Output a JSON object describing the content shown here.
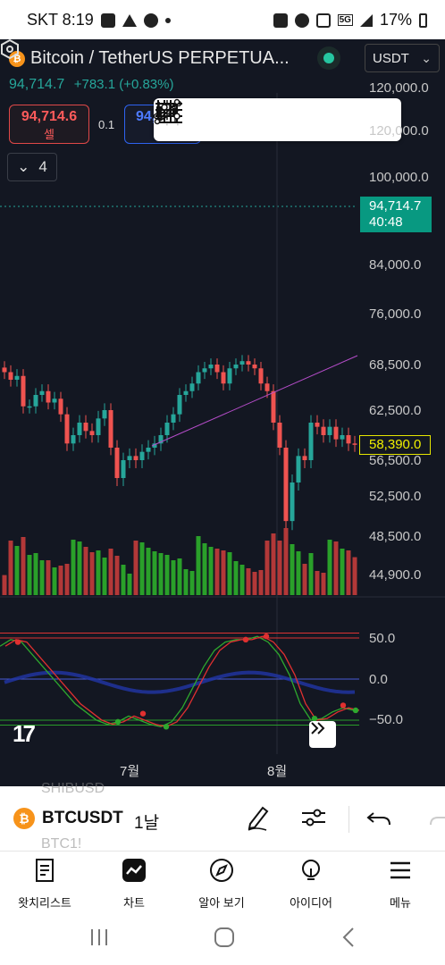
{
  "status_bar": {
    "carrier_time": "SKT 8:19",
    "network": "5G",
    "battery": "17%"
  },
  "header": {
    "coin_glyph": "₿",
    "title": "Bitcoin / TetherUS PERPETUA...",
    "currency": "USDT",
    "price": "94,714.7",
    "change": "+783.1 (+0.83%)"
  },
  "order": {
    "sell_price": "94,714.6",
    "sell_label": "셀",
    "spread": "0.1",
    "buy_price": "94,714.7"
  },
  "indicators_toggle": {
    "count": "4"
  },
  "price_axis": {
    "labels": [
      "120,000.0",
      "100,000.0",
      "84,000.0",
      "76,000.0",
      "68,500.0",
      "62,500.0",
      "56,500.0",
      "52,500.0",
      "48,500.0",
      "44,900.0"
    ],
    "current_price": "94,714.7",
    "countdown": "40:48",
    "last_bar_price": "58,390.0"
  },
  "oscillator_axis": {
    "labels": [
      "50.0",
      "0.0",
      "−50.0"
    ]
  },
  "time_axis": {
    "labels": [
      "7월",
      "8월"
    ]
  },
  "chart_data": {
    "type": "candlestick",
    "symbol": "BTCUSDT",
    "interval": "1날",
    "close_approx": [
      67500,
      66500,
      67000,
      63000,
      63000,
      64500,
      65000,
      63500,
      64000,
      62000,
      58500,
      59500,
      61000,
      60000,
      59500,
      61500,
      62500,
      58000,
      54500,
      56500,
      57000,
      56500,
      57500,
      58000,
      58500,
      59500,
      61000,
      62000,
      64500,
      65000,
      66000,
      67500,
      68000,
      68500,
      67500,
      66000,
      68000,
      68500,
      69000,
      68500,
      68000,
      66000,
      65000,
      61000,
      58000,
      50000,
      54000,
      57000,
      56500,
      61000,
      60500,
      59500,
      60500,
      59000,
      59500,
      58500,
      58390
    ],
    "ylim": [
      44900,
      120000
    ],
    "oscillator_ylim": [
      -60,
      60
    ],
    "oscillator_levels": [
      50,
      0,
      -50
    ]
  },
  "symbol_bar": {
    "ghost_above": "SHIBUSD",
    "symbol": "BTCUSDT",
    "ghost_below": "BTC1!",
    "interval": "1날"
  },
  "bottom_nav": [
    {
      "label": "왓치리스트",
      "icon": "watchlist-icon"
    },
    {
      "label": "차트",
      "icon": "chart-icon"
    },
    {
      "label": "알아 보기",
      "icon": "compass-icon"
    },
    {
      "label": "아이디어",
      "icon": "lightbulb-icon"
    },
    {
      "label": "메뉴",
      "icon": "hamburger-menu-icon"
    }
  ],
  "colors": {
    "up": "#26a69a",
    "down": "#ef5350",
    "background": "#131722",
    "vol_up": "#2aa02a",
    "vol_down": "#b33838"
  }
}
